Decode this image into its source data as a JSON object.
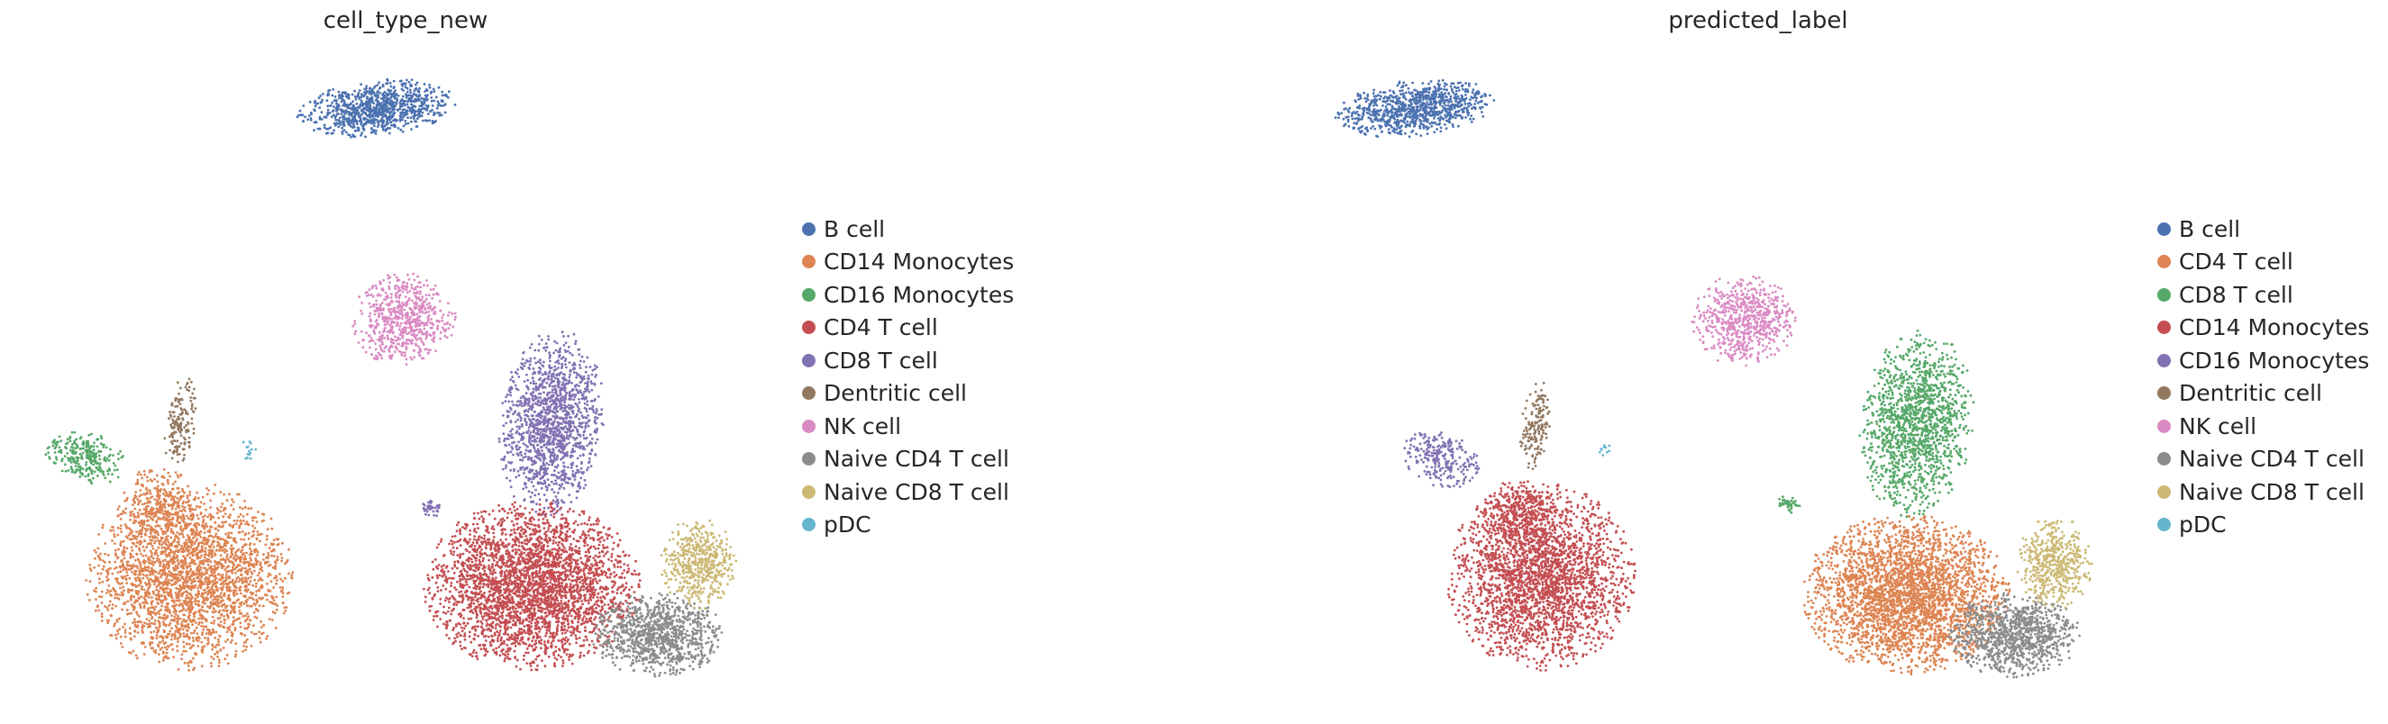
{
  "palette": {
    "blue": "#4c72b0",
    "orange": "#dd8452",
    "green": "#55a868",
    "red": "#c44e52",
    "purple": "#8172b3",
    "brown": "#937860",
    "pink": "#da8bc3",
    "gray": "#8c8c8c",
    "olive": "#ccb974",
    "cyan": "#64b5cd"
  },
  "chart_data": [
    {
      "type": "scatter",
      "title": "cell_type_new",
      "axes_visible": false,
      "legend_position": "right",
      "series": [
        {
          "name": "B cell",
          "color": "#4c72b0"
        },
        {
          "name": "CD14 Monocytes",
          "color": "#dd8452"
        },
        {
          "name": "CD16 Monocytes",
          "color": "#55a868"
        },
        {
          "name": "CD4 T cell",
          "color": "#c44e52"
        },
        {
          "name": "CD8 T cell",
          "color": "#8172b3"
        },
        {
          "name": "Dentritic cell",
          "color": "#937860"
        },
        {
          "name": "NK cell",
          "color": "#da8bc3"
        },
        {
          "name": "Naive CD4 T cell",
          "color": "#8c8c8c"
        },
        {
          "name": "Naive CD8 T cell",
          "color": "#ccb974"
        },
        {
          "name": "pDC",
          "color": "#64b5cd"
        }
      ]
    },
    {
      "type": "scatter",
      "title": "predicted_label",
      "axes_visible": false,
      "legend_position": "right",
      "series": [
        {
          "name": "B cell",
          "color": "#4c72b0"
        },
        {
          "name": "CD4 T cell",
          "color": "#dd8452"
        },
        {
          "name": "CD8 T cell",
          "color": "#55a868"
        },
        {
          "name": "CD14 Monocytes",
          "color": "#c44e52"
        },
        {
          "name": "CD16 Monocytes",
          "color": "#8172b3"
        },
        {
          "name": "Dentritic cell",
          "color": "#937860"
        },
        {
          "name": "NK cell",
          "color": "#da8bc3"
        },
        {
          "name": "Naive CD4 T cell",
          "color": "#8c8c8c"
        },
        {
          "name": "Naive CD8 T cell",
          "color": "#ccb974"
        },
        {
          "name": "pDC",
          "color": "#64b5cd"
        }
      ]
    }
  ]
}
